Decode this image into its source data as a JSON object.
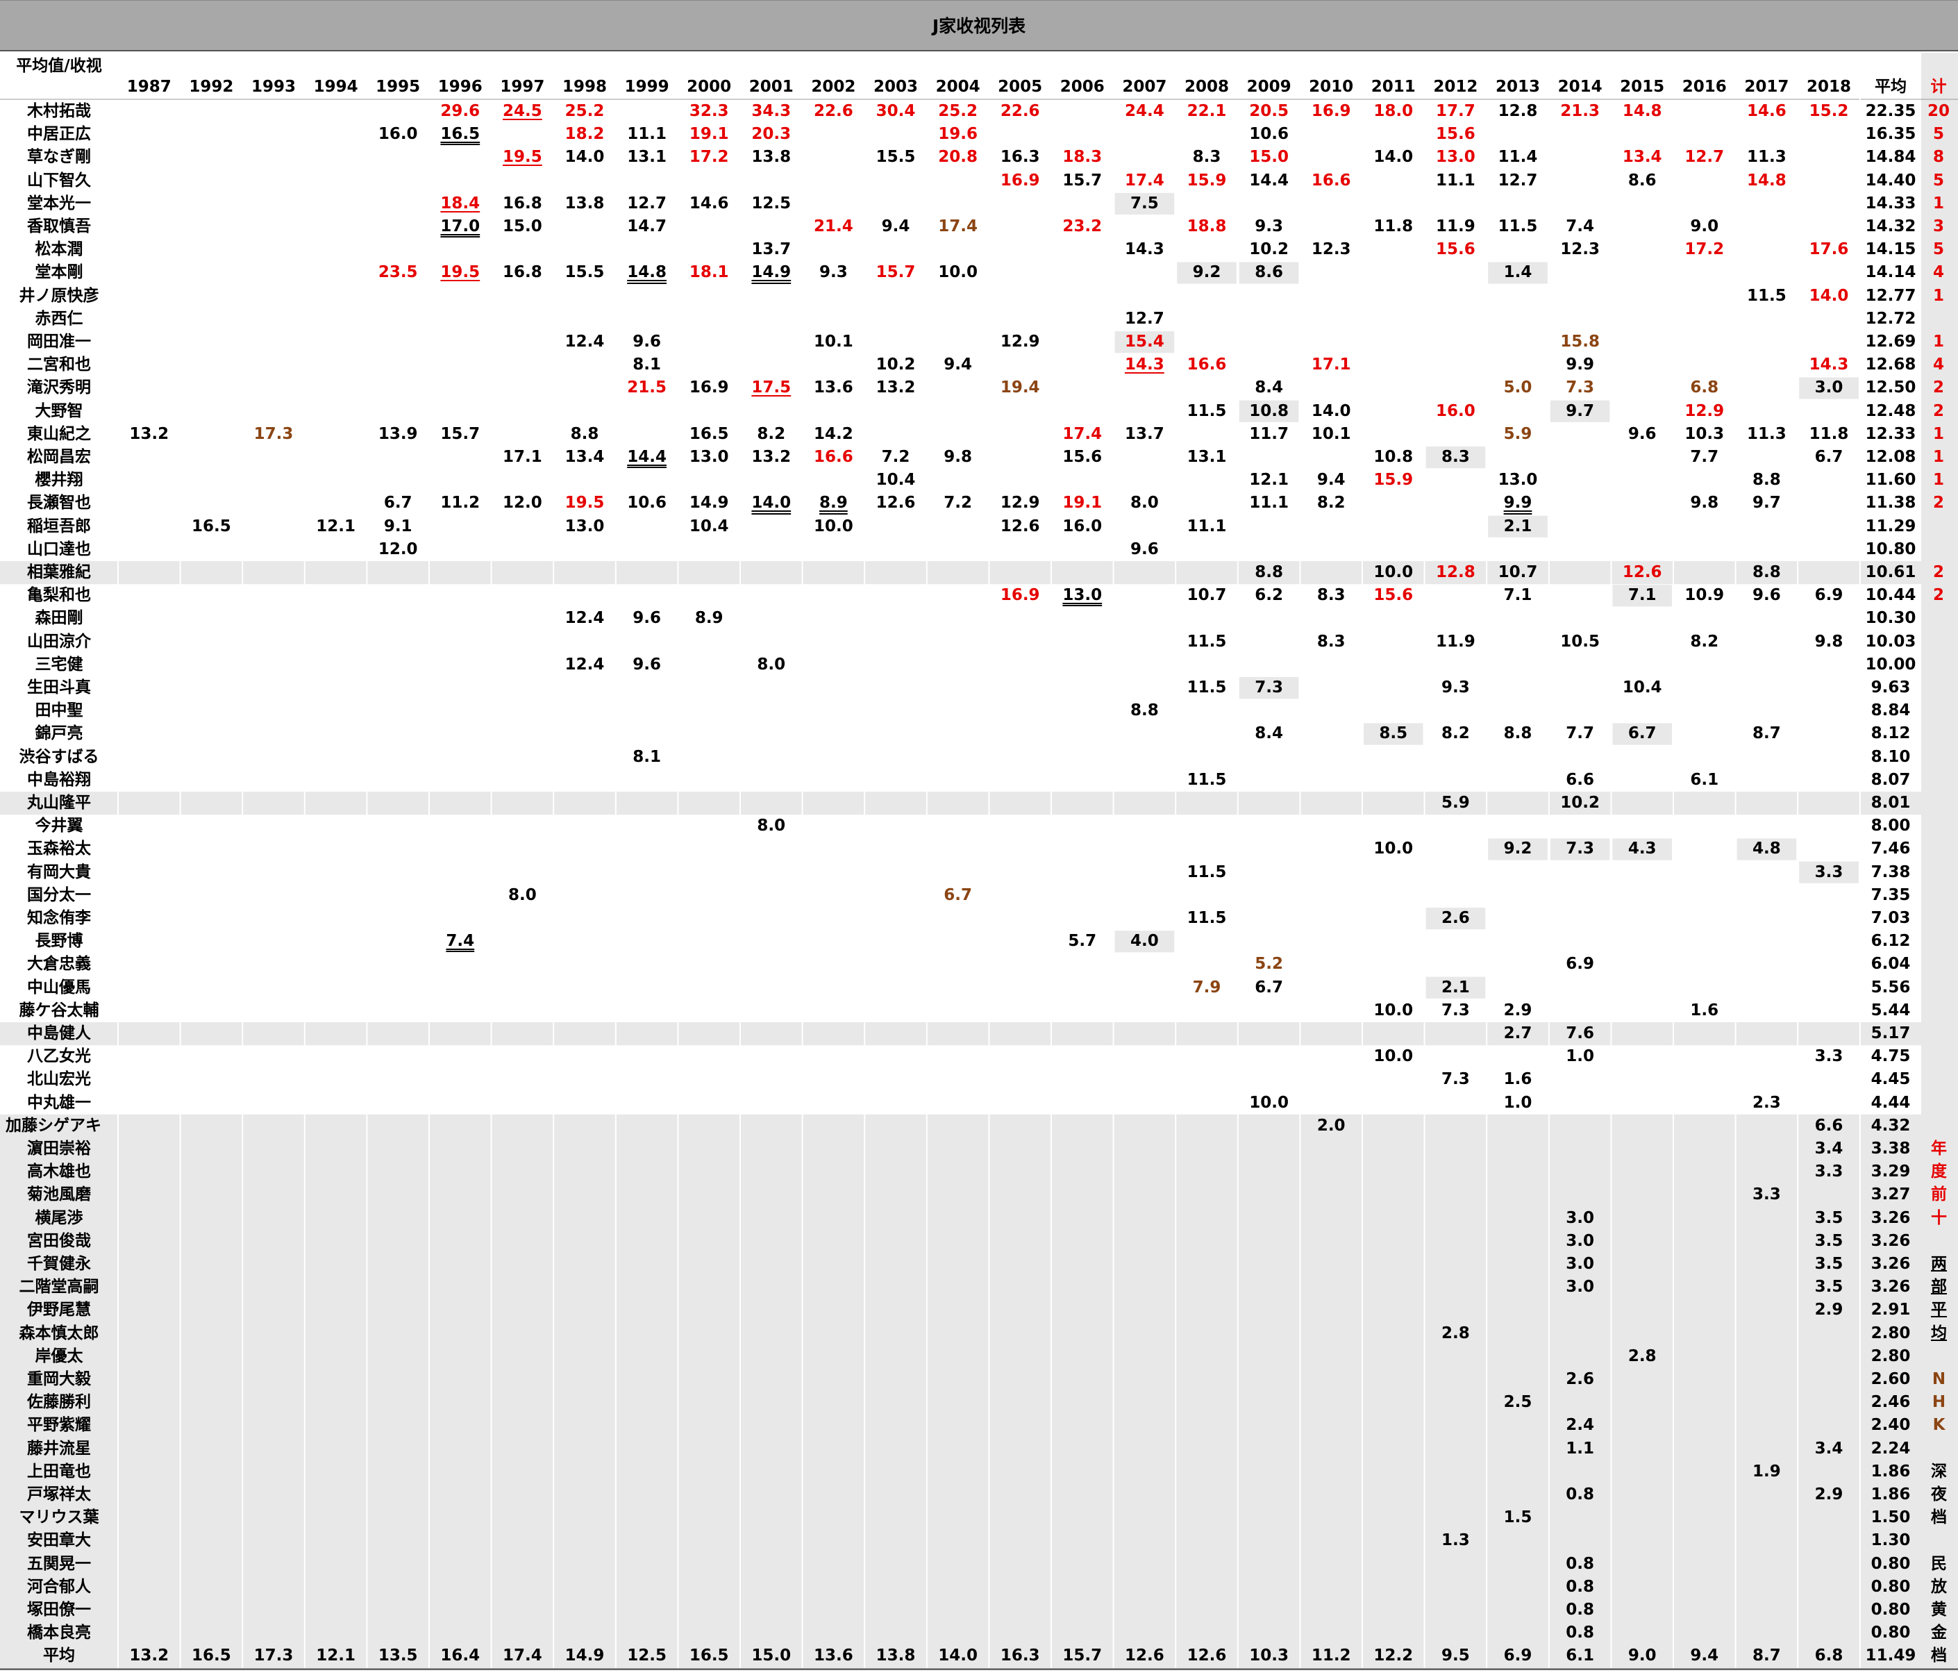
{
  "window": {
    "title": "J家收视列表"
  },
  "colors": {
    "red": "#e60000",
    "brown": "#8b4513",
    "shade": "#e8e8e8",
    "black": "#000000"
  },
  "table": {
    "corner_label": "平均值/收视",
    "years": [
      "1987",
      "1992",
      "1993",
      "1994",
      "1995",
      "1996",
      "1997",
      "1998",
      "1999",
      "2000",
      "2001",
      "2002",
      "2003",
      "2004",
      "2005",
      "2006",
      "2007",
      "2008",
      "2009",
      "2010",
      "2011",
      "2012",
      "2013",
      "2014",
      "2015",
      "2016",
      "2017",
      "2018"
    ],
    "avg_header": "平均",
    "count_header": "计",
    "rows": [
      {
        "name": "木村拓哉",
        "avg": "22.35",
        "count": "20",
        "cells": {
          "1996": "29.6r",
          "1997": "24.5ru",
          "1998": "25.2r",
          "2000": "32.3r",
          "2001": "34.3r",
          "2002": "22.6r",
          "2003": "30.4r",
          "2004": "25.2r",
          "2005": "22.6r",
          "2007": "24.4r",
          "2008": "22.1r",
          "2009": "20.5r",
          "2010": "16.9r",
          "2011": "18.0r",
          "2012": "17.7r",
          "2013": "12.8",
          "2014": "21.3r",
          "2015": "14.8r",
          "2017": "14.6r",
          "2018": "15.2r"
        }
      },
      {
        "name": "中居正広",
        "avg": "16.35",
        "count": "5",
        "cells": {
          "1995": "16.0",
          "1996": "16.5d",
          "1998": "18.2r",
          "1999": "11.1",
          "2000": "19.1r",
          "2001": "20.3r",
          "2004": "19.6r",
          "2009": "10.6",
          "2012": "15.6r"
        }
      },
      {
        "name": "草なぎ剛",
        "avg": "14.84",
        "count": "8",
        "cells": {
          "1997": "19.5ru",
          "1998": "14.0",
          "1999": "13.1",
          "2000": "17.2r",
          "2001": "13.8",
          "2003": "15.5",
          "2004": "20.8r",
          "2005": "16.3",
          "2006": "18.3r",
          "2008": "8.3",
          "2009": "15.0r",
          "2011": "14.0",
          "2012": "13.0r",
          "2013": "11.4",
          "2015": "13.4r",
          "2016": "12.7r",
          "2017": "11.3"
        }
      },
      {
        "name": "山下智久",
        "avg": "14.40",
        "count": "5",
        "cells": {
          "2005": "16.9r",
          "2006": "15.7",
          "2007": "17.4r",
          "2008": "15.9r",
          "2009": "14.4",
          "2010": "16.6r",
          "2012": "11.1",
          "2013": "12.7",
          "2015": "8.6",
          "2017": "14.8r"
        }
      },
      {
        "name": "堂本光一",
        "avg": "14.33",
        "count": "1",
        "cells": {
          "1996": "18.4ru",
          "1997": "16.8",
          "1998": "13.8",
          "1999": "12.7",
          "2000": "14.6",
          "2001": "12.5",
          "2007": "7.5s"
        }
      },
      {
        "name": "香取慎吾",
        "avg": "14.32",
        "count": "3",
        "cells": {
          "1996": "17.0d",
          "1997": "15.0",
          "1999": "14.7",
          "2002": "21.4r",
          "2003": "9.4",
          "2004": "17.4b",
          "2006": "23.2r",
          "2008": "18.8r",
          "2009": "9.3",
          "2011": "11.8",
          "2012": "11.9",
          "2013": "11.5",
          "2014": "7.4",
          "2016": "9.0"
        }
      },
      {
        "name": "松本潤",
        "avg": "14.15",
        "count": "5",
        "cells": {
          "2001": "13.7",
          "2007": "14.3",
          "2009": "10.2",
          "2010": "12.3",
          "2012": "15.6r",
          "2014": "12.3",
          "2016": "17.2r",
          "2018": "17.6r"
        }
      },
      {
        "name": "堂本剛",
        "avg": "14.14",
        "count": "4",
        "cells": {
          "1995": "23.5r",
          "1996": "19.5ru",
          "1997": "16.8",
          "1998": "15.5",
          "1999": "14.8d",
          "2000": "18.1r",
          "2001": "14.9d",
          "2002": "9.3",
          "2003": "15.7r",
          "2004": "10.0",
          "2008": "9.2s",
          "2009": "8.6s",
          "2013": "1.4s"
        }
      },
      {
        "name": "井ノ原快彦",
        "avg": "12.77",
        "count": "1",
        "cells": {
          "2017": "11.5",
          "2018": "14.0r"
        }
      },
      {
        "name": "赤西仁",
        "avg": "12.72",
        "count": "",
        "cells": {
          "2007": "12.7"
        }
      },
      {
        "name": "岡田准一",
        "avg": "12.69",
        "count": "1",
        "cells": {
          "1998": "12.4",
          "1999": "9.6",
          "2002": "10.1",
          "2005": "12.9",
          "2007": "15.4rs",
          "2014": "15.8b"
        }
      },
      {
        "name": "二宮和也",
        "avg": "12.68",
        "count": "4",
        "cells": {
          "1999": "8.1",
          "2003": "10.2",
          "2004": "9.4",
          "2007": "14.3ru",
          "2008": "16.6r",
          "2010": "17.1r",
          "2014": "9.9",
          "2018": "14.3r"
        }
      },
      {
        "name": "滝沢秀明",
        "avg": "12.50",
        "count": "2",
        "cells": {
          "1999": "21.5r",
          "2000": "16.9",
          "2001": "17.5ru",
          "2002": "13.6",
          "2003": "13.2",
          "2005": "19.4b",
          "2009": "8.4",
          "2013": "5.0b",
          "2014": "7.3b",
          "2016": "6.8b",
          "2018": "3.0s"
        }
      },
      {
        "name": "大野智",
        "avg": "12.48",
        "count": "2",
        "cells": {
          "2008": "11.5",
          "2009": "10.8s",
          "2010": "14.0",
          "2012": "16.0r",
          "2014": "9.7s",
          "2016": "12.9r"
        }
      },
      {
        "name": "東山紀之",
        "avg": "12.33",
        "count": "1",
        "cells": {
          "1987": "13.2",
          "1993": "17.3b",
          "1995": "13.9",
          "1996": "15.7",
          "1998": "8.8",
          "2000": "16.5",
          "2001": "8.2",
          "2002": "14.2",
          "2006": "17.4r",
          "2007": "13.7",
          "2009": "11.7",
          "2010": "10.1",
          "2013": "5.9b",
          "2015": "9.6",
          "2016": "10.3",
          "2017": "11.3",
          "2018": "11.8"
        }
      },
      {
        "name": "松岡昌宏",
        "avg": "12.08",
        "count": "1",
        "cells": {
          "1997": "17.1",
          "1998": "13.4",
          "1999": "14.4d",
          "2000": "13.0",
          "2001": "13.2",
          "2002": "16.6r",
          "2003": "7.2",
          "2004": "9.8",
          "2006": "15.6",
          "2008": "13.1",
          "2011": "10.8",
          "2012": "8.3s",
          "2016": "7.7",
          "2018": "6.7"
        }
      },
      {
        "name": "櫻井翔",
        "avg": "11.60",
        "count": "1",
        "cells": {
          "2003": "10.4",
          "2009": "12.1",
          "2010": "9.4",
          "2011": "15.9r",
          "2013": "13.0",
          "2017": "8.8"
        }
      },
      {
        "name": "長瀬智也",
        "avg": "11.38",
        "count": "2",
        "cells": {
          "1995": "6.7",
          "1996": "11.2",
          "1997": "12.0",
          "1998": "19.5r",
          "1999": "10.6",
          "2000": "14.9",
          "2001": "14.0d",
          "2002": "8.9d",
          "2003": "12.6",
          "2004": "7.2",
          "2005": "12.9",
          "2006": "19.1r",
          "2007": "8.0",
          "2009": "11.1",
          "2010": "8.2",
          "2013": "9.9d",
          "2016": "9.8",
          "2017": "9.7"
        }
      },
      {
        "name": "稲垣吾郎",
        "avg": "11.29",
        "count": "",
        "cells": {
          "1992": "16.5",
          "1994": "12.1",
          "1995": "9.1",
          "1998": "13.0",
          "2000": "10.4",
          "2002": "10.0",
          "2005": "12.6",
          "2006": "16.0",
          "2008": "11.1",
          "2013": "2.1s"
        }
      },
      {
        "name": "山口達也",
        "avg": "10.80",
        "count": "",
        "cells": {
          "1995": "12.0",
          "2007": "9.6"
        }
      },
      {
        "name": "相葉雅紀",
        "avg": "10.61",
        "count": "2",
        "cells": {
          "2009": "8.8",
          "2011": "10.0",
          "2012": "12.8r",
          "2013": "10.7",
          "2015": "12.6r",
          "2017": "8.8"
        }
      },
      {
        "name": "亀梨和也",
        "avg": "10.44",
        "count": "2",
        "cells": {
          "2005": "16.9r",
          "2006": "13.0d",
          "2008": "10.7",
          "2009": "6.2",
          "2010": "8.3",
          "2011": "15.6r",
          "2013": "7.1",
          "2015": "7.1s",
          "2016": "10.9",
          "2017": "9.6",
          "2018": "6.9"
        }
      },
      {
        "name": "森田剛",
        "avg": "10.30",
        "count": "",
        "cells": {
          "1998": "12.4",
          "1999": "9.6",
          "2000": "8.9"
        }
      },
      {
        "name": "山田涼介",
        "avg": "10.03",
        "count": "",
        "cells": {
          "2008": "11.5",
          "2010": "8.3",
          "2012": "11.9",
          "2014": "10.5",
          "2016": "8.2",
          "2018": "9.8"
        }
      },
      {
        "name": "三宅健",
        "avg": "10.00",
        "count": "",
        "cells": {
          "1998": "12.4",
          "1999": "9.6",
          "2001": "8.0"
        }
      },
      {
        "name": "生田斗真",
        "avg": "9.63",
        "count": "",
        "cells": {
          "2008": "11.5",
          "2009": "7.3s",
          "2012": "9.3",
          "2015": "10.4"
        }
      },
      {
        "name": "田中聖",
        "avg": "8.84",
        "count": "",
        "cells": {
          "2007": "8.8"
        }
      },
      {
        "name": "錦戸亮",
        "avg": "8.12",
        "count": "",
        "cells": {
          "2009": "8.4",
          "2011": "8.5s",
          "2012": "8.2",
          "2013": "8.8",
          "2014": "7.7",
          "2015": "6.7s",
          "2017": "8.7"
        }
      },
      {
        "name": "渋谷すばる",
        "avg": "8.10",
        "count": "",
        "cells": {
          "1999": "8.1"
        }
      },
      {
        "name": "中島裕翔",
        "avg": "8.07",
        "count": "",
        "cells": {
          "2008": "11.5",
          "2014": "6.6",
          "2016": "6.1"
        }
      },
      {
        "name": "丸山隆平",
        "avg": "8.01",
        "count": "",
        "cells": {
          "2012": "5.9",
          "2014": "10.2"
        }
      },
      {
        "name": "今井翼",
        "avg": "8.00",
        "count": "",
        "cells": {
          "2001": "8.0"
        }
      },
      {
        "name": "玉森裕太",
        "avg": "7.46",
        "count": "",
        "cells": {
          "2011": "10.0",
          "2013": "9.2s",
          "2014": "7.3s",
          "2015": "4.3s",
          "2017": "4.8s"
        }
      },
      {
        "name": "有岡大貴",
        "avg": "7.38",
        "count": "",
        "cells": {
          "2008": "11.5",
          "2018": "3.3s"
        }
      },
      {
        "name": "国分太一",
        "avg": "7.35",
        "count": "",
        "cells": {
          "1997": "8.0",
          "2004": "6.7b"
        }
      },
      {
        "name": "知念侑李",
        "avg": "7.03",
        "count": "",
        "cells": {
          "2008": "11.5",
          "2012": "2.6s"
        }
      },
      {
        "name": "長野博",
        "avg": "6.12",
        "count": "",
        "cells": {
          "1996": "7.4d",
          "2006": "5.7",
          "2007": "4.0s"
        }
      },
      {
        "name": "大倉忠義",
        "avg": "6.04",
        "count": "",
        "cells": {
          "2009": "5.2b",
          "2014": "6.9"
        }
      },
      {
        "name": "中山優馬",
        "avg": "5.56",
        "count": "",
        "cells": {
          "2008": "7.9b",
          "2009": "6.7",
          "2012": "2.1s"
        }
      },
      {
        "name": "藤ケ谷太輔",
        "avg": "5.44",
        "count": "",
        "cells": {
          "2011": "10.0",
          "2012": "7.3",
          "2013": "2.9",
          "2016": "1.6"
        }
      },
      {
        "name": "中島健人",
        "avg": "5.17",
        "count": "",
        "cells": {
          "2013": "2.7",
          "2014": "7.6"
        }
      },
      {
        "name": "八乙女光",
        "avg": "4.75",
        "count": "",
        "cells": {
          "2011": "10.0",
          "2014": "1.0",
          "2018": "3.3"
        }
      },
      {
        "name": "北山宏光",
        "avg": "4.45",
        "count": "",
        "cells": {
          "2012": "7.3",
          "2013": "1.6"
        }
      },
      {
        "name": "中丸雄一",
        "avg": "4.44",
        "count": "",
        "cells": {
          "2009": "10.0",
          "2013": "1.0",
          "2017": "2.3"
        }
      },
      {
        "name": "加藤シゲアキ",
        "avg": "4.32",
        "count": "",
        "cells": {
          "2010": "2.0",
          "2018": "6.6"
        }
      },
      {
        "name": "濵田崇裕",
        "avg": "3.38",
        "count": "",
        "cells": {
          "2018": "3.4"
        }
      },
      {
        "name": "高木雄也",
        "avg": "3.29",
        "count": "",
        "cells": {
          "2018": "3.3"
        }
      },
      {
        "name": "菊池風磨",
        "avg": "3.27",
        "count": "",
        "cells": {
          "2017": "3.3"
        }
      },
      {
        "name": "横尾渉",
        "avg": "3.26",
        "count": "",
        "cells": {
          "2014": "3.0",
          "2018": "3.5"
        }
      },
      {
        "name": "宮田俊哉",
        "avg": "3.26",
        "count": "",
        "cells": {
          "2014": "3.0",
          "2018": "3.5"
        }
      },
      {
        "name": "千賀健永",
        "avg": "3.26",
        "count": "",
        "cells": {
          "2014": "3.0",
          "2018": "3.5"
        }
      },
      {
        "name": "二階堂高嗣",
        "avg": "3.26",
        "count": "",
        "cells": {
          "2014": "3.0",
          "2018": "3.5"
        }
      },
      {
        "name": "伊野尾慧",
        "avg": "2.91",
        "count": "",
        "cells": {
          "2018": "2.9"
        }
      },
      {
        "name": "森本慎太郎",
        "avg": "2.80",
        "count": "",
        "cells": {
          "2012": "2.8"
        }
      },
      {
        "name": "岸優太",
        "avg": "2.80",
        "count": "",
        "cells": {
          "2015": "2.8"
        }
      },
      {
        "name": "重岡大毅",
        "avg": "2.60",
        "count": "",
        "cells": {
          "2014": "2.6"
        }
      },
      {
        "name": "佐藤勝利",
        "avg": "2.46",
        "count": "",
        "cells": {
          "2013": "2.5"
        }
      },
      {
        "name": "平野紫耀",
        "avg": "2.40",
        "count": "",
        "cells": {
          "2014": "2.4"
        }
      },
      {
        "name": "藤井流星",
        "avg": "2.24",
        "count": "",
        "cells": {
          "2014": "1.1",
          "2018": "3.4"
        }
      },
      {
        "name": "上田竜也",
        "avg": "1.86",
        "count": "",
        "cells": {
          "2017": "1.9"
        }
      },
      {
        "name": "戸塚祥太",
        "avg": "1.86",
        "count": "",
        "cells": {
          "2014": "0.8",
          "2018": "2.9"
        }
      },
      {
        "name": "マリウス葉",
        "avg": "1.50",
        "count": "",
        "cells": {
          "2013": "1.5"
        }
      },
      {
        "name": "安田章大",
        "avg": "1.30",
        "count": "",
        "cells": {
          "2012": "1.3"
        }
      },
      {
        "name": "五関晃一",
        "avg": "0.80",
        "count": "",
        "cells": {
          "2014": "0.8"
        }
      },
      {
        "name": "河合郁人",
        "avg": "0.80",
        "count": "",
        "cells": {
          "2014": "0.8"
        }
      },
      {
        "name": "塚田僚一",
        "avg": "0.80",
        "count": "",
        "cells": {
          "2014": "0.8"
        }
      },
      {
        "name": "橋本良亮",
        "avg": "0.80",
        "count": "",
        "cells": {
          "2014": "0.8"
        }
      }
    ],
    "footer": {
      "label": "平均",
      "values": [
        "13.2",
        "16.5",
        "17.3",
        "12.1",
        "13.5",
        "16.4",
        "17.4",
        "14.9",
        "12.5",
        "16.5",
        "15.0",
        "13.6",
        "13.8",
        "14.0",
        "16.3",
        "15.7",
        "12.6",
        "12.6",
        "10.3",
        "11.2",
        "12.2",
        "9.5",
        "6.9",
        "6.1",
        "9.0",
        "9.4",
        "8.7",
        "6.8"
      ],
      "avg": "11.49"
    }
  },
  "legend": {
    "top10": {
      "chars": [
        "年",
        "度",
        "前",
        "十"
      ],
      "color": "#e60000"
    },
    "avg": {
      "chars": [
        "两",
        "部",
        "平",
        "均"
      ],
      "color": "#000000"
    },
    "nhk": {
      "chars": [
        "N",
        "H",
        "K"
      ],
      "color": "#8b4513"
    },
    "late": {
      "chars": [
        "深",
        "夜",
        "档"
      ],
      "color": "#000000"
    },
    "golden": {
      "chars": [
        "民",
        "放",
        "黄",
        "金",
        "档"
      ],
      "color": "#000000"
    }
  }
}
